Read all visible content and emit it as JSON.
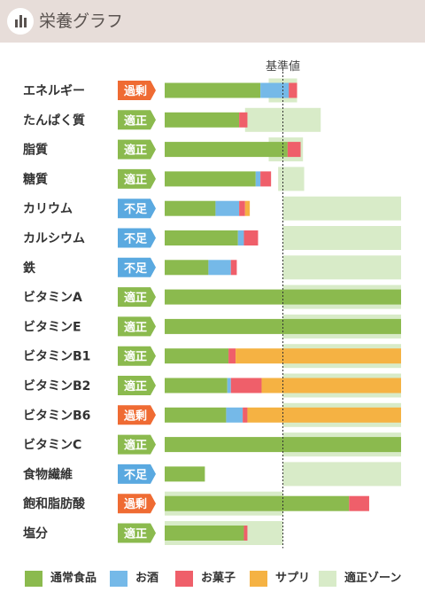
{
  "header": {
    "title": "栄養グラフ",
    "icon": "bar-chart-icon"
  },
  "colors": {
    "normal_food": "#8bba4e",
    "alcohol": "#75b9e8",
    "sweets": "#ef5f6a",
    "supplement": "#f5b243",
    "zone": "#d8ebc8",
    "badge_over": "#ef6b33",
    "badge_ok": "#8bba4e",
    "badge_under": "#5aa9e0"
  },
  "chart_data": {
    "type": "bar",
    "orientation": "horizontal",
    "stacked": true,
    "reference_label": "基準値",
    "reference_value": 100,
    "xlim": [
      0,
      200
    ],
    "categories": [
      "エネルギー",
      "たんぱく質",
      "脂質",
      "糖質",
      "カリウム",
      "カルシウム",
      "鉄",
      "ビタミンA",
      "ビタミンE",
      "ビタミンB1",
      "ビタミンB2",
      "ビタミンB6",
      "ビタミンC",
      "食物繊維",
      "飽和脂肪酸",
      "塩分"
    ],
    "status": [
      "過剰",
      "適正",
      "適正",
      "適正",
      "不足",
      "不足",
      "不足",
      "適正",
      "適正",
      "適正",
      "適正",
      "過剰",
      "適正",
      "不足",
      "過剰",
      "適正"
    ],
    "series": [
      {
        "name": "通常食品",
        "values": [
          81,
          63,
          104,
          77,
          43,
          62,
          37,
          200,
          200,
          54,
          53,
          52,
          200,
          34,
          156,
          67
        ]
      },
      {
        "name": "お酒",
        "values": [
          24,
          0,
          0,
          4,
          20,
          5,
          19,
          0,
          0,
          0,
          3,
          14,
          0,
          0,
          0,
          0
        ]
      },
      {
        "name": "お菓子",
        "values": [
          7,
          7,
          11,
          9,
          5,
          12,
          5,
          0,
          0,
          6,
          26,
          4,
          0,
          0,
          17,
          3
        ]
      },
      {
        "name": "サプリ",
        "values": [
          0,
          0,
          0,
          0,
          4,
          0,
          0,
          0,
          0,
          140,
          118,
          130,
          0,
          0,
          0,
          0
        ]
      }
    ],
    "zones": [
      [
        88,
        112
      ],
      [
        68,
        132
      ],
      [
        88,
        117
      ],
      [
        96,
        118
      ],
      [
        100,
        200
      ],
      [
        100,
        200
      ],
      [
        100,
        200
      ],
      [
        100,
        200
      ],
      [
        100,
        200
      ],
      [
        100,
        200
      ],
      [
        100,
        200
      ],
      [
        100,
        200
      ],
      [
        100,
        200
      ],
      [
        100,
        200
      ],
      [
        0,
        100
      ],
      [
        0,
        100
      ]
    ],
    "legend": [
      "通常食品",
      "お酒",
      "お菓子",
      "サプリ",
      "適正ゾーン"
    ],
    "legend_position": "bottom",
    "grid": false
  }
}
